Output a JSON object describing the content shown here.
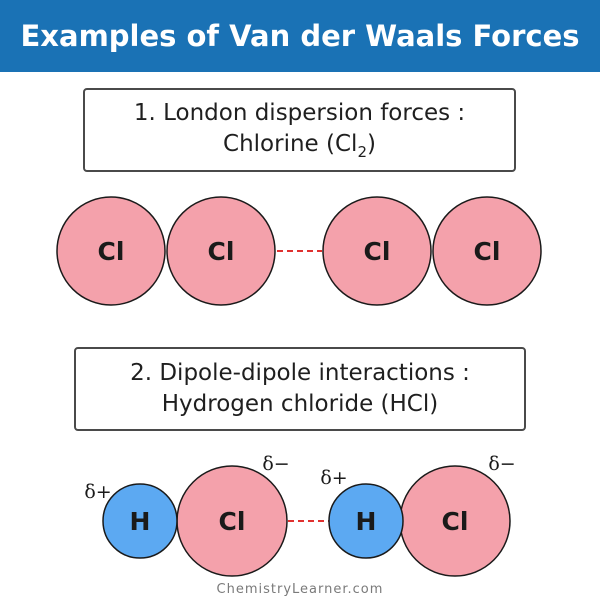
{
  "header": {
    "title": "Examples of Van der Waals Forces"
  },
  "section1": {
    "line1": "1. London dispersion forces :",
    "line2_prefix": "Chlorine (Cl",
    "line2_sub": "2",
    "line2_suffix": ")"
  },
  "section2": {
    "line1": "2. Dipole-dipole interactions :",
    "line2": "Hydrogen chloride (HCl)"
  },
  "molecule1": {
    "atom_a": "Cl",
    "atom_b": "Cl",
    "atom_c": "Cl",
    "atom_d": "Cl"
  },
  "molecule2": {
    "atom_h1": "H",
    "atom_cl1": "Cl",
    "atom_h2": "H",
    "atom_cl2": "Cl",
    "charge_pos_1": "δ+",
    "charge_neg_1": "δ−",
    "charge_pos_2": "δ+",
    "charge_neg_2": "δ−"
  },
  "footer": {
    "brand": "ChemistryLearner.com"
  },
  "colors": {
    "header_bg": "#1a72b5",
    "chlorine_fill": "#f4a1ab",
    "hydrogen_fill": "#5ca9f2",
    "atom_stroke": "#1a1a1a",
    "bond_dash": "#e0312f"
  }
}
